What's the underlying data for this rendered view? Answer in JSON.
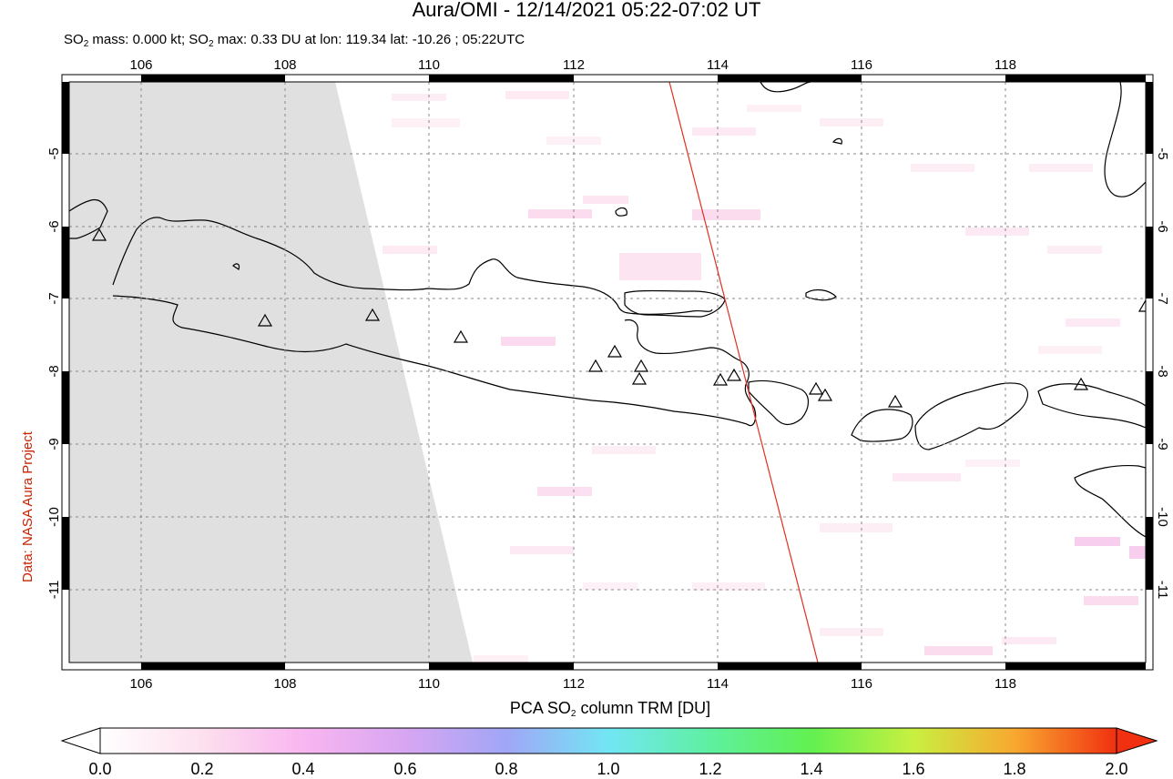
{
  "header": {
    "title": "Aura/OMI - 12/14/2021 05:22-07:02 UT",
    "subtitle_prefix": "SO",
    "subtitle_part1": " mass: 0.000 kt; SO",
    "subtitle_part2": " max: 0.33 DU at lon: 119.34 lat: -10.26 ; 05:22UTC",
    "subscript": "2"
  },
  "credit": "Data: NASA Aura Project",
  "map": {
    "lon_ticks": [
      "106",
      "108",
      "110",
      "112",
      "114",
      "116",
      "118"
    ],
    "lat_ticks": [
      "-5",
      "-6",
      "-7",
      "-8",
      "-9",
      "-10",
      "-11"
    ],
    "lon_range": [
      105,
      120
    ],
    "lat_range": [
      -12,
      -4
    ],
    "no_data_color": "#e0e0e0",
    "track_color": "#e03020",
    "volcano_count": 15
  },
  "colorbar": {
    "title_prefix": "PCA SO",
    "title_suffix": " column TRM [DU]",
    "subscript": "2",
    "ticks": [
      "0.0",
      "0.2",
      "0.4",
      "0.6",
      "0.8",
      "1.0",
      "1.2",
      "1.4",
      "1.6",
      "1.8",
      "2.0"
    ],
    "colors": [
      "#ffffff",
      "#fde0ee",
      "#f9b6f0",
      "#d7a6f2",
      "#a0a6f6",
      "#72e6f4",
      "#5ef0a0",
      "#62f050",
      "#c8f040",
      "#f8a830",
      "#f03010"
    ]
  }
}
